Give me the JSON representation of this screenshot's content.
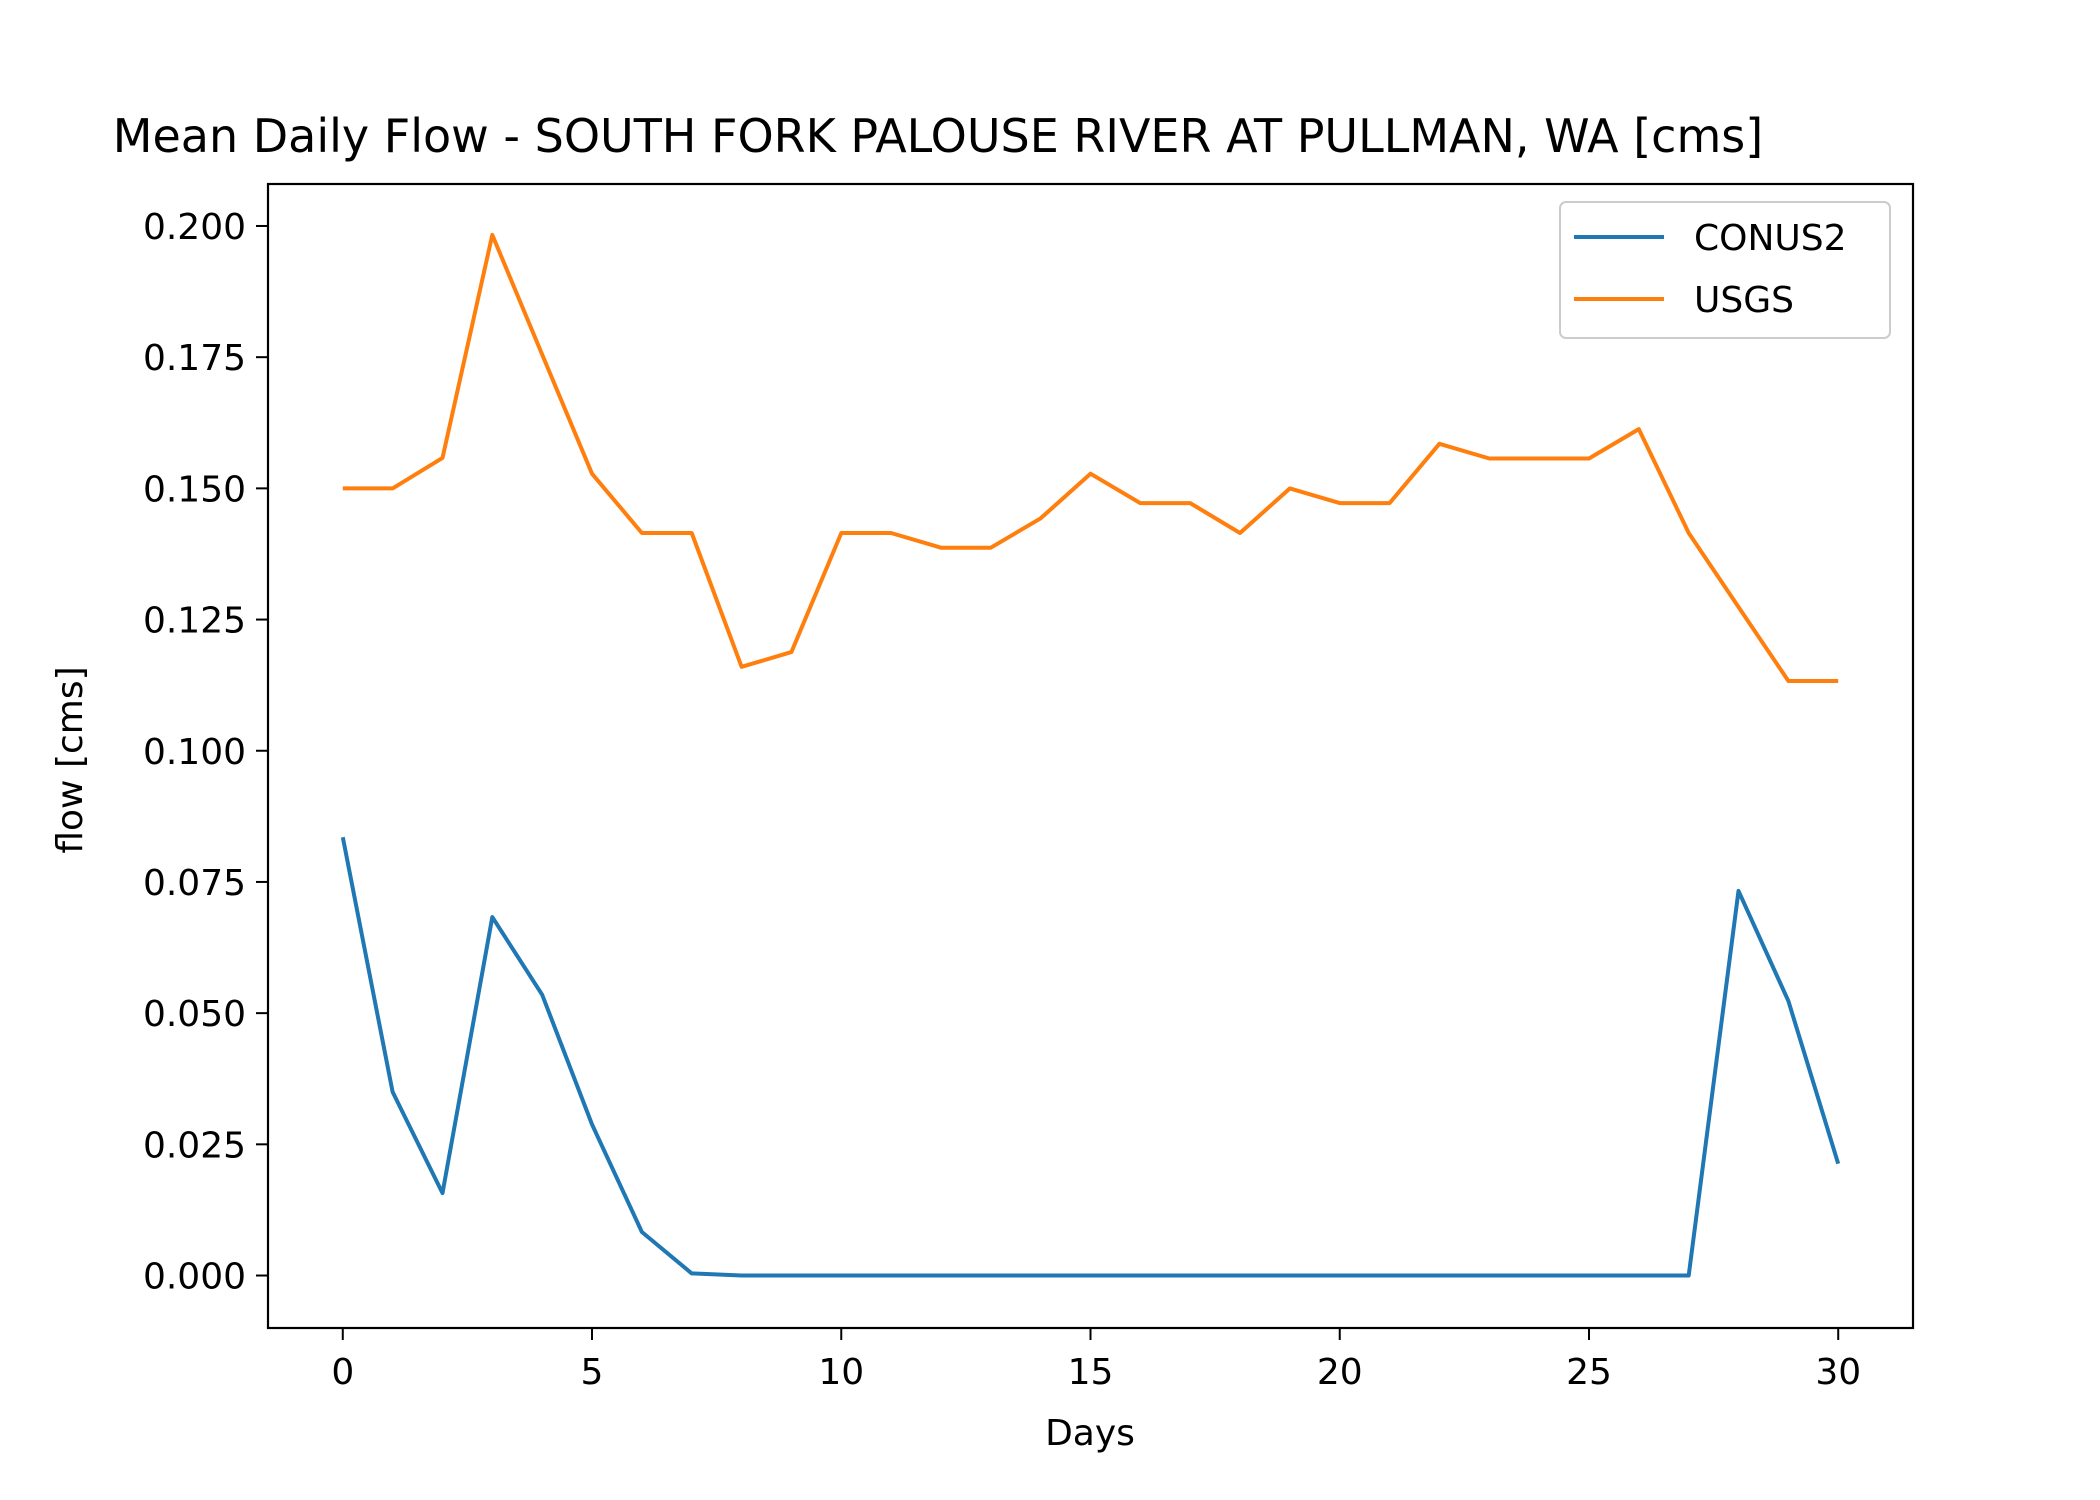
{
  "chart_data": {
    "type": "line",
    "title": "Mean Daily Flow - SOUTH FORK PALOUSE RIVER AT PULLMAN, WA [cms]",
    "xlabel": "Days",
    "ylabel": "flow [cms]",
    "xlim": [
      -1.5,
      31.5
    ],
    "ylim": [
      -0.01,
      0.208
    ],
    "xticks": [
      0,
      5,
      10,
      15,
      20,
      25,
      30
    ],
    "xtick_labels": [
      "0",
      "5",
      "10",
      "15",
      "20",
      "25",
      "30"
    ],
    "yticks": [
      0.0,
      0.025,
      0.05,
      0.075,
      0.1,
      0.125,
      0.15,
      0.175,
      0.2
    ],
    "ytick_labels": [
      "0.000",
      "0.025",
      "0.050",
      "0.075",
      "0.100",
      "0.125",
      "0.150",
      "0.175",
      "0.200"
    ],
    "grid": false,
    "legend_position": "top-right",
    "x": [
      0,
      1,
      2,
      3,
      4,
      5,
      6,
      7,
      8,
      9,
      10,
      11,
      12,
      13,
      14,
      15,
      16,
      17,
      18,
      19,
      20,
      21,
      22,
      23,
      24,
      25,
      26,
      27,
      28,
      29,
      30
    ],
    "series": [
      {
        "name": "CONUS2",
        "color": "#1f77b4",
        "values": [
          0.0835,
          0.035,
          0.0157,
          0.0683,
          0.0535,
          0.0288,
          0.0083,
          0.0004,
          0.0,
          0.0,
          0.0,
          0.0,
          0.0,
          0.0,
          0.0,
          0.0,
          0.0,
          0.0,
          0.0,
          0.0,
          0.0,
          0.0,
          0.0,
          0.0,
          0.0,
          0.0,
          0.0,
          0.0,
          0.0733,
          0.0523,
          0.0213
        ]
      },
      {
        "name": "USGS",
        "color": "#ff7f0e",
        "values": [
          0.15,
          0.15,
          0.1558,
          0.1983,
          0.1755,
          0.1528,
          0.1415,
          0.1415,
          0.116,
          0.1188,
          0.1415,
          0.1415,
          0.1387,
          0.1387,
          0.1443,
          0.1528,
          0.1472,
          0.1472,
          0.1415,
          0.15,
          0.1472,
          0.1472,
          0.1585,
          0.1557,
          0.1557,
          0.1557,
          0.1613,
          0.1415,
          0.1274,
          0.1133,
          0.1133
        ]
      }
    ]
  }
}
